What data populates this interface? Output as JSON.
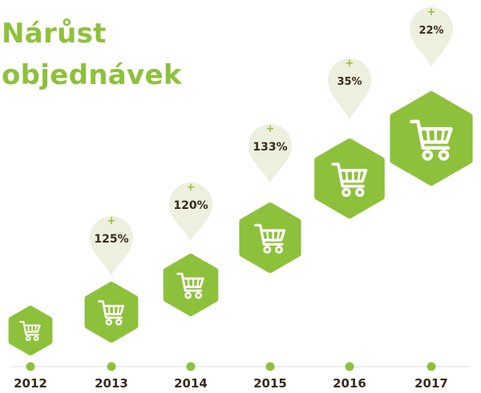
{
  "chart_title_lines": [
    "Nárůst",
    "objednávek"
  ],
  "chart_data": {
    "type": "bar",
    "title": "Nárůst objednávek",
    "categories": [
      "2012",
      "2013",
      "2014",
      "2015",
      "2016",
      "2017"
    ],
    "growth_labels": [
      "",
      "125%",
      "120%",
      "133%",
      "35%",
      "22%"
    ],
    "growth_prefix": "+",
    "icon": "shopping-cart-icon",
    "colors": {
      "accent": "#8dc13b",
      "pin": "#edf0de",
      "label_text": "#3a2a1e",
      "axis_line": "#e6e6e6",
      "cart": "#ffffff"
    }
  }
}
